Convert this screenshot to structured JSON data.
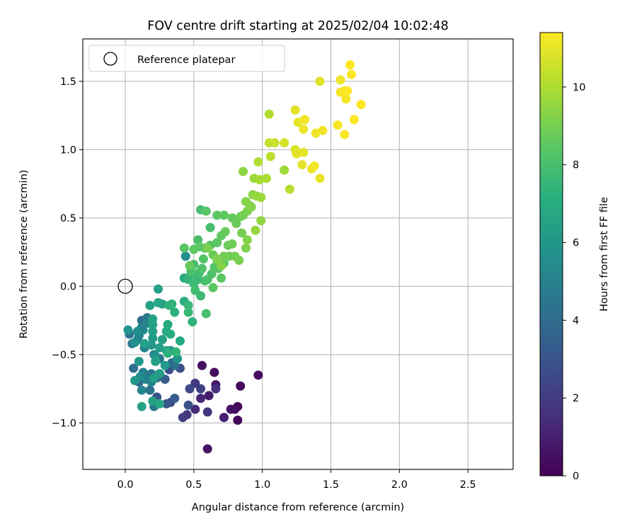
{
  "chart_data": {
    "type": "scatter",
    "title": "FOV centre drift starting at 2025/02/04 10:02:48",
    "xlabel": "Angular distance from reference (arcmin)",
    "ylabel": "Rotation from reference (arcmin)",
    "xlim": [
      -0.31,
      2.83
    ],
    "ylim": [
      -1.34,
      1.81
    ],
    "xticks": [
      0.0,
      0.5,
      1.0,
      1.5,
      2.0,
      2.5
    ],
    "xtick_labels": [
      "0.0",
      "0.5",
      "1.0",
      "1.5",
      "2.0",
      "2.5"
    ],
    "yticks": [
      -1.0,
      -0.5,
      0.0,
      0.5,
      1.0,
      1.5
    ],
    "ytick_labels": [
      "−1.0",
      "−0.5",
      "0.0",
      "0.5",
      "1.0",
      "1.5"
    ],
    "grid": true,
    "legend": {
      "location": "upper-left",
      "entries": [
        {
          "label": "Reference platepar",
          "marker": "hollow-circle",
          "color": "#000000"
        }
      ]
    },
    "reference_point": {
      "x": 0.0,
      "y": 0.0
    },
    "colorbar": {
      "label": "Hours from first FF file",
      "colormap": "viridis",
      "range": [
        0,
        11.4
      ],
      "ticks": [
        0,
        2,
        4,
        6,
        8,
        10
      ],
      "tick_labels": [
        "0",
        "2",
        "4",
        "6",
        "8",
        "10"
      ]
    },
    "points": [
      [
        0.6,
        -1.19,
        0.6
      ],
      [
        0.82,
        -0.98,
        0.2
      ],
      [
        0.82,
        -0.88,
        0.3
      ],
      [
        0.8,
        -0.9,
        0.4
      ],
      [
        0.77,
        -0.9,
        0.5
      ],
      [
        0.72,
        -0.96,
        1.0
      ],
      [
        0.84,
        -0.73,
        0.3
      ],
      [
        0.97,
        -0.65,
        0.3
      ],
      [
        0.65,
        -0.63,
        0.4
      ],
      [
        0.56,
        -0.58,
        0.5
      ],
      [
        0.66,
        -0.72,
        0.7
      ],
      [
        0.61,
        -0.8,
        0.9
      ],
      [
        0.55,
        -0.82,
        1.3
      ],
      [
        0.51,
        -0.9,
        1.4
      ],
      [
        0.45,
        -0.94,
        1.8
      ],
      [
        0.42,
        -0.96,
        2.1
      ],
      [
        0.6,
        -0.92,
        1.8
      ],
      [
        0.66,
        -0.75,
        1.6
      ],
      [
        0.55,
        -0.75,
        2.2
      ],
      [
        0.51,
        -0.71,
        2.0
      ],
      [
        0.47,
        -0.75,
        2.5
      ],
      [
        0.46,
        -0.87,
        2.9
      ],
      [
        0.33,
        -0.85,
        2.6
      ],
      [
        0.3,
        -0.86,
        3.1
      ],
      [
        0.36,
        -0.82,
        3.3
      ],
      [
        0.23,
        -0.81,
        3.0
      ],
      [
        0.32,
        -0.61,
        2.7
      ],
      [
        0.4,
        -0.6,
        2.8
      ],
      [
        0.29,
        -0.68,
        3.4
      ],
      [
        0.23,
        -0.67,
        3.7
      ],
      [
        0.25,
        -0.64,
        3.6
      ],
      [
        0.18,
        -0.76,
        4.3
      ],
      [
        0.1,
        -0.7,
        3.8
      ],
      [
        0.06,
        -0.6,
        4.1
      ],
      [
        0.19,
        -0.64,
        4.3
      ],
      [
        0.21,
        -0.88,
        4.6
      ],
      [
        0.36,
        -0.58,
        4.4
      ],
      [
        0.34,
        -0.56,
        4.2
      ],
      [
        0.25,
        -0.53,
        4.6
      ],
      [
        0.21,
        -0.5,
        4.8
      ],
      [
        0.13,
        -0.63,
        4.9
      ],
      [
        0.12,
        -0.76,
        5.2
      ],
      [
        0.19,
        -0.7,
        5.3
      ],
      [
        0.15,
        -0.68,
        5.0
      ],
      [
        0.11,
        -0.66,
        5.5
      ],
      [
        0.14,
        -0.45,
        5.1
      ],
      [
        0.03,
        -0.35,
        4.4
      ],
      [
        0.05,
        -0.42,
        4.7
      ],
      [
        0.09,
        -0.39,
        5.4
      ],
      [
        0.13,
        -0.32,
        5.8
      ],
      [
        0.12,
        -0.25,
        4.2
      ],
      [
        0.16,
        -0.23,
        4.6
      ],
      [
        0.12,
        -0.3,
        4.9
      ],
      [
        0.1,
        -0.36,
        5.0
      ],
      [
        0.16,
        -0.27,
        5.2
      ],
      [
        0.09,
        -0.33,
        5.6
      ],
      [
        0.07,
        -0.41,
        5.7
      ],
      [
        0.02,
        -0.32,
        5.9
      ],
      [
        0.19,
        -0.43,
        6.1
      ],
      [
        0.2,
        -0.38,
        6.2
      ],
      [
        0.2,
        -0.33,
        6.4
      ],
      [
        0.2,
        -0.28,
        6.6
      ],
      [
        0.2,
        -0.24,
        6.7
      ],
      [
        0.22,
        -0.51,
        5.8
      ],
      [
        0.25,
        -0.45,
        6.3
      ],
      [
        0.27,
        -0.39,
        6.5
      ],
      [
        0.33,
        -0.47,
        5.9
      ],
      [
        0.38,
        -0.53,
        6.0
      ],
      [
        0.3,
        -0.47,
        6.8
      ],
      [
        0.29,
        -0.58,
        6.2
      ],
      [
        0.22,
        -0.55,
        6.6
      ],
      [
        0.25,
        -0.64,
        6.3
      ],
      [
        0.21,
        -0.67,
        6.4
      ],
      [
        0.2,
        -0.84,
        6.5
      ],
      [
        0.12,
        -0.88,
        6.6
      ],
      [
        0.25,
        -0.86,
        6.9
      ],
      [
        0.07,
        -0.69,
        6.0
      ],
      [
        0.1,
        -0.55,
        6.1
      ],
      [
        0.14,
        -0.42,
        6.5
      ],
      [
        0.18,
        -0.14,
        6.6
      ],
      [
        0.27,
        -0.13,
        6.7
      ],
      [
        0.24,
        -0.12,
        6.8
      ],
      [
        0.24,
        -0.02,
        6.5
      ],
      [
        0.31,
        -0.28,
        7.0
      ],
      [
        0.3,
        -0.33,
        6.9
      ],
      [
        0.33,
        -0.35,
        7.1
      ],
      [
        0.34,
        -0.13,
        7.2
      ],
      [
        0.36,
        -0.19,
        7.3
      ],
      [
        0.32,
        -0.14,
        7.4
      ],
      [
        0.4,
        -0.4,
        7.0
      ],
      [
        0.37,
        -0.48,
        7.5
      ],
      [
        0.31,
        -0.49,
        7.3
      ],
      [
        0.43,
        -0.11,
        7.2
      ],
      [
        0.46,
        -0.14,
        7.6
      ],
      [
        0.49,
        -0.26,
        7.4
      ],
      [
        0.46,
        -0.19,
        7.7
      ],
      [
        0.43,
        0.06,
        6.9
      ],
      [
        0.44,
        0.22,
        5.6
      ],
      [
        0.46,
        0.05,
        7.5
      ],
      [
        0.48,
        0.09,
        7.6
      ],
      [
        0.5,
        0.02,
        7.8
      ],
      [
        0.51,
        -0.03,
        7.9
      ],
      [
        0.53,
        0.05,
        7.7
      ],
      [
        0.54,
        0.1,
        7.9
      ],
      [
        0.58,
        0.04,
        8.0
      ],
      [
        0.6,
        0.05,
        8.1
      ],
      [
        0.63,
        0.09,
        8.2
      ],
      [
        0.65,
        0.14,
        8.3
      ],
      [
        0.68,
        0.13,
        8.4
      ],
      [
        0.55,
        -0.07,
        7.8
      ],
      [
        0.59,
        -0.2,
        8.0
      ],
      [
        0.64,
        -0.01,
        8.5
      ],
      [
        0.7,
        0.06,
        8.5
      ],
      [
        0.72,
        0.17,
        8.6
      ],
      [
        0.67,
        0.19,
        8.7
      ],
      [
        0.64,
        0.23,
        8.8
      ],
      [
        0.5,
        0.16,
        8.0
      ],
      [
        0.48,
        0.11,
        8.1
      ],
      [
        0.56,
        0.13,
        8.2
      ],
      [
        0.57,
        0.2,
        8.3
      ],
      [
        0.58,
        0.28,
        8.4
      ],
      [
        0.53,
        0.34,
        8.1
      ],
      [
        0.54,
        0.29,
        8.5
      ],
      [
        0.5,
        0.27,
        8.6
      ],
      [
        0.43,
        0.28,
        8.4
      ],
      [
        0.47,
        0.15,
        8.7
      ],
      [
        0.62,
        0.3,
        8.3
      ],
      [
        0.67,
        0.32,
        8.5
      ],
      [
        0.7,
        0.37,
        8.6
      ],
      [
        0.73,
        0.4,
        8.7
      ],
      [
        0.75,
        0.3,
        8.8
      ],
      [
        0.78,
        0.31,
        8.9
      ],
      [
        0.8,
        0.22,
        9.0
      ],
      [
        0.76,
        0.22,
        8.9
      ],
      [
        0.83,
        0.19,
        9.1
      ],
      [
        0.88,
        0.28,
        9.2
      ],
      [
        0.85,
        0.39,
        9.0
      ],
      [
        0.89,
        0.34,
        9.3
      ],
      [
        0.72,
        0.22,
        9.0
      ],
      [
        0.67,
        0.2,
        9.2
      ],
      [
        0.7,
        0.15,
        9.3
      ],
      [
        0.6,
        0.28,
        9.1
      ],
      [
        0.62,
        0.43,
        8.0
      ],
      [
        0.55,
        0.56,
        8.0
      ],
      [
        0.59,
        0.55,
        8.4
      ],
      [
        0.67,
        0.52,
        8.5
      ],
      [
        0.72,
        0.52,
        8.6
      ],
      [
        0.78,
        0.5,
        8.7
      ],
      [
        0.81,
        0.46,
        8.8
      ],
      [
        0.84,
        0.51,
        8.9
      ],
      [
        0.86,
        0.52,
        9.0
      ],
      [
        0.89,
        0.55,
        9.1
      ],
      [
        0.91,
        0.59,
        9.2
      ],
      [
        0.92,
        0.58,
        9.3
      ],
      [
        0.88,
        0.62,
        9.3
      ],
      [
        0.93,
        0.67,
        9.4
      ],
      [
        0.96,
        0.66,
        9.6
      ],
      [
        0.99,
        0.65,
        9.7
      ],
      [
        0.99,
        0.48,
        9.5
      ],
      [
        0.95,
        0.41,
        9.6
      ],
      [
        0.86,
        0.84,
        9.5
      ],
      [
        0.94,
        0.79,
        9.7
      ],
      [
        0.98,
        0.78,
        9.9
      ],
      [
        1.03,
        0.79,
        10.0
      ],
      [
        0.97,
        0.91,
        10.1
      ],
      [
        1.06,
        0.95,
        10.3
      ],
      [
        1.05,
        1.05,
        10.4
      ],
      [
        1.09,
        1.05,
        10.5
      ],
      [
        1.16,
        0.85,
        9.8
      ],
      [
        1.2,
        0.71,
        10.2
      ],
      [
        1.16,
        1.05,
        10.7
      ],
      [
        1.24,
        1.0,
        10.8
      ],
      [
        1.25,
        0.97,
        10.9
      ],
      [
        1.3,
        0.98,
        11.0
      ],
      [
        1.29,
        0.89,
        11.0
      ],
      [
        1.36,
        0.86,
        11.1
      ],
      [
        1.38,
        0.88,
        11.2
      ],
      [
        1.42,
        0.79,
        11.0
      ],
      [
        1.05,
        1.26,
        10.1
      ],
      [
        1.24,
        1.29,
        10.9
      ],
      [
        1.26,
        1.2,
        11.0
      ],
      [
        1.3,
        1.15,
        11.1
      ],
      [
        1.31,
        1.22,
        11.2
      ],
      [
        1.39,
        1.12,
        11.1
      ],
      [
        1.44,
        1.14,
        11.2
      ],
      [
        1.55,
        1.18,
        11.3
      ],
      [
        1.6,
        1.11,
        11.3
      ],
      [
        1.67,
        1.22,
        11.4
      ],
      [
        1.72,
        1.33,
        11.4
      ],
      [
        1.42,
        1.5,
        10.9
      ],
      [
        1.57,
        1.51,
        11.2
      ],
      [
        1.6,
        1.43,
        11.3
      ],
      [
        1.57,
        1.42,
        11.3
      ],
      [
        1.61,
        1.37,
        11.3
      ],
      [
        1.62,
        1.43,
        11.4
      ],
      [
        1.64,
        1.62,
        11.4
      ],
      [
        1.65,
        1.55,
        11.4
      ]
    ]
  }
}
